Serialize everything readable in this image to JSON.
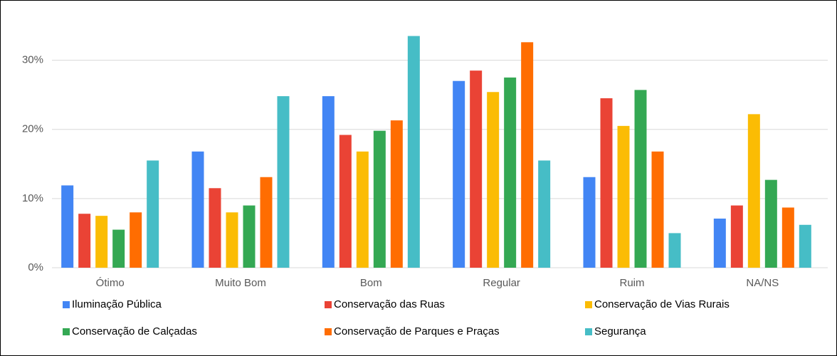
{
  "chart_data": {
    "type": "bar",
    "categories": [
      "Ótimo",
      "Muito Bom",
      "Bom",
      "Regular",
      "Ruim",
      "NA/NS"
    ],
    "series": [
      {
        "name": "Iluminação Pública",
        "color": "#4285f4",
        "values": [
          11.9,
          16.8,
          24.8,
          27.0,
          13.1,
          7.1
        ]
      },
      {
        "name": "Conservação das Ruas",
        "color": "#ea4335",
        "values": [
          7.8,
          11.5,
          19.2,
          28.5,
          24.5,
          9.0
        ]
      },
      {
        "name": "Conservação de Vias Rurais",
        "color": "#fbbc04",
        "values": [
          7.5,
          8.0,
          16.8,
          25.4,
          20.5,
          22.2
        ]
      },
      {
        "name": "Conservação de Calçadas",
        "color": "#34a853",
        "values": [
          5.5,
          9.0,
          19.8,
          27.5,
          25.7,
          12.7
        ]
      },
      {
        "name": "Conservação de Parques e Praças",
        "color": "#ff6d01",
        "values": [
          8.0,
          13.1,
          21.3,
          32.6,
          16.8,
          8.7
        ]
      },
      {
        "name": "Segurança",
        "color": "#46bdc6",
        "values": [
          15.5,
          24.8,
          33.5,
          15.5,
          5.0,
          6.2
        ]
      }
    ],
    "ylim": [
      0,
      35
    ],
    "yticks": [
      {
        "value": 0,
        "label": "0%"
      },
      {
        "value": 10,
        "label": "10%"
      },
      {
        "value": 20,
        "label": "20%"
      },
      {
        "value": 30,
        "label": "30%"
      }
    ],
    "grid": true,
    "legend": "bottom"
  }
}
